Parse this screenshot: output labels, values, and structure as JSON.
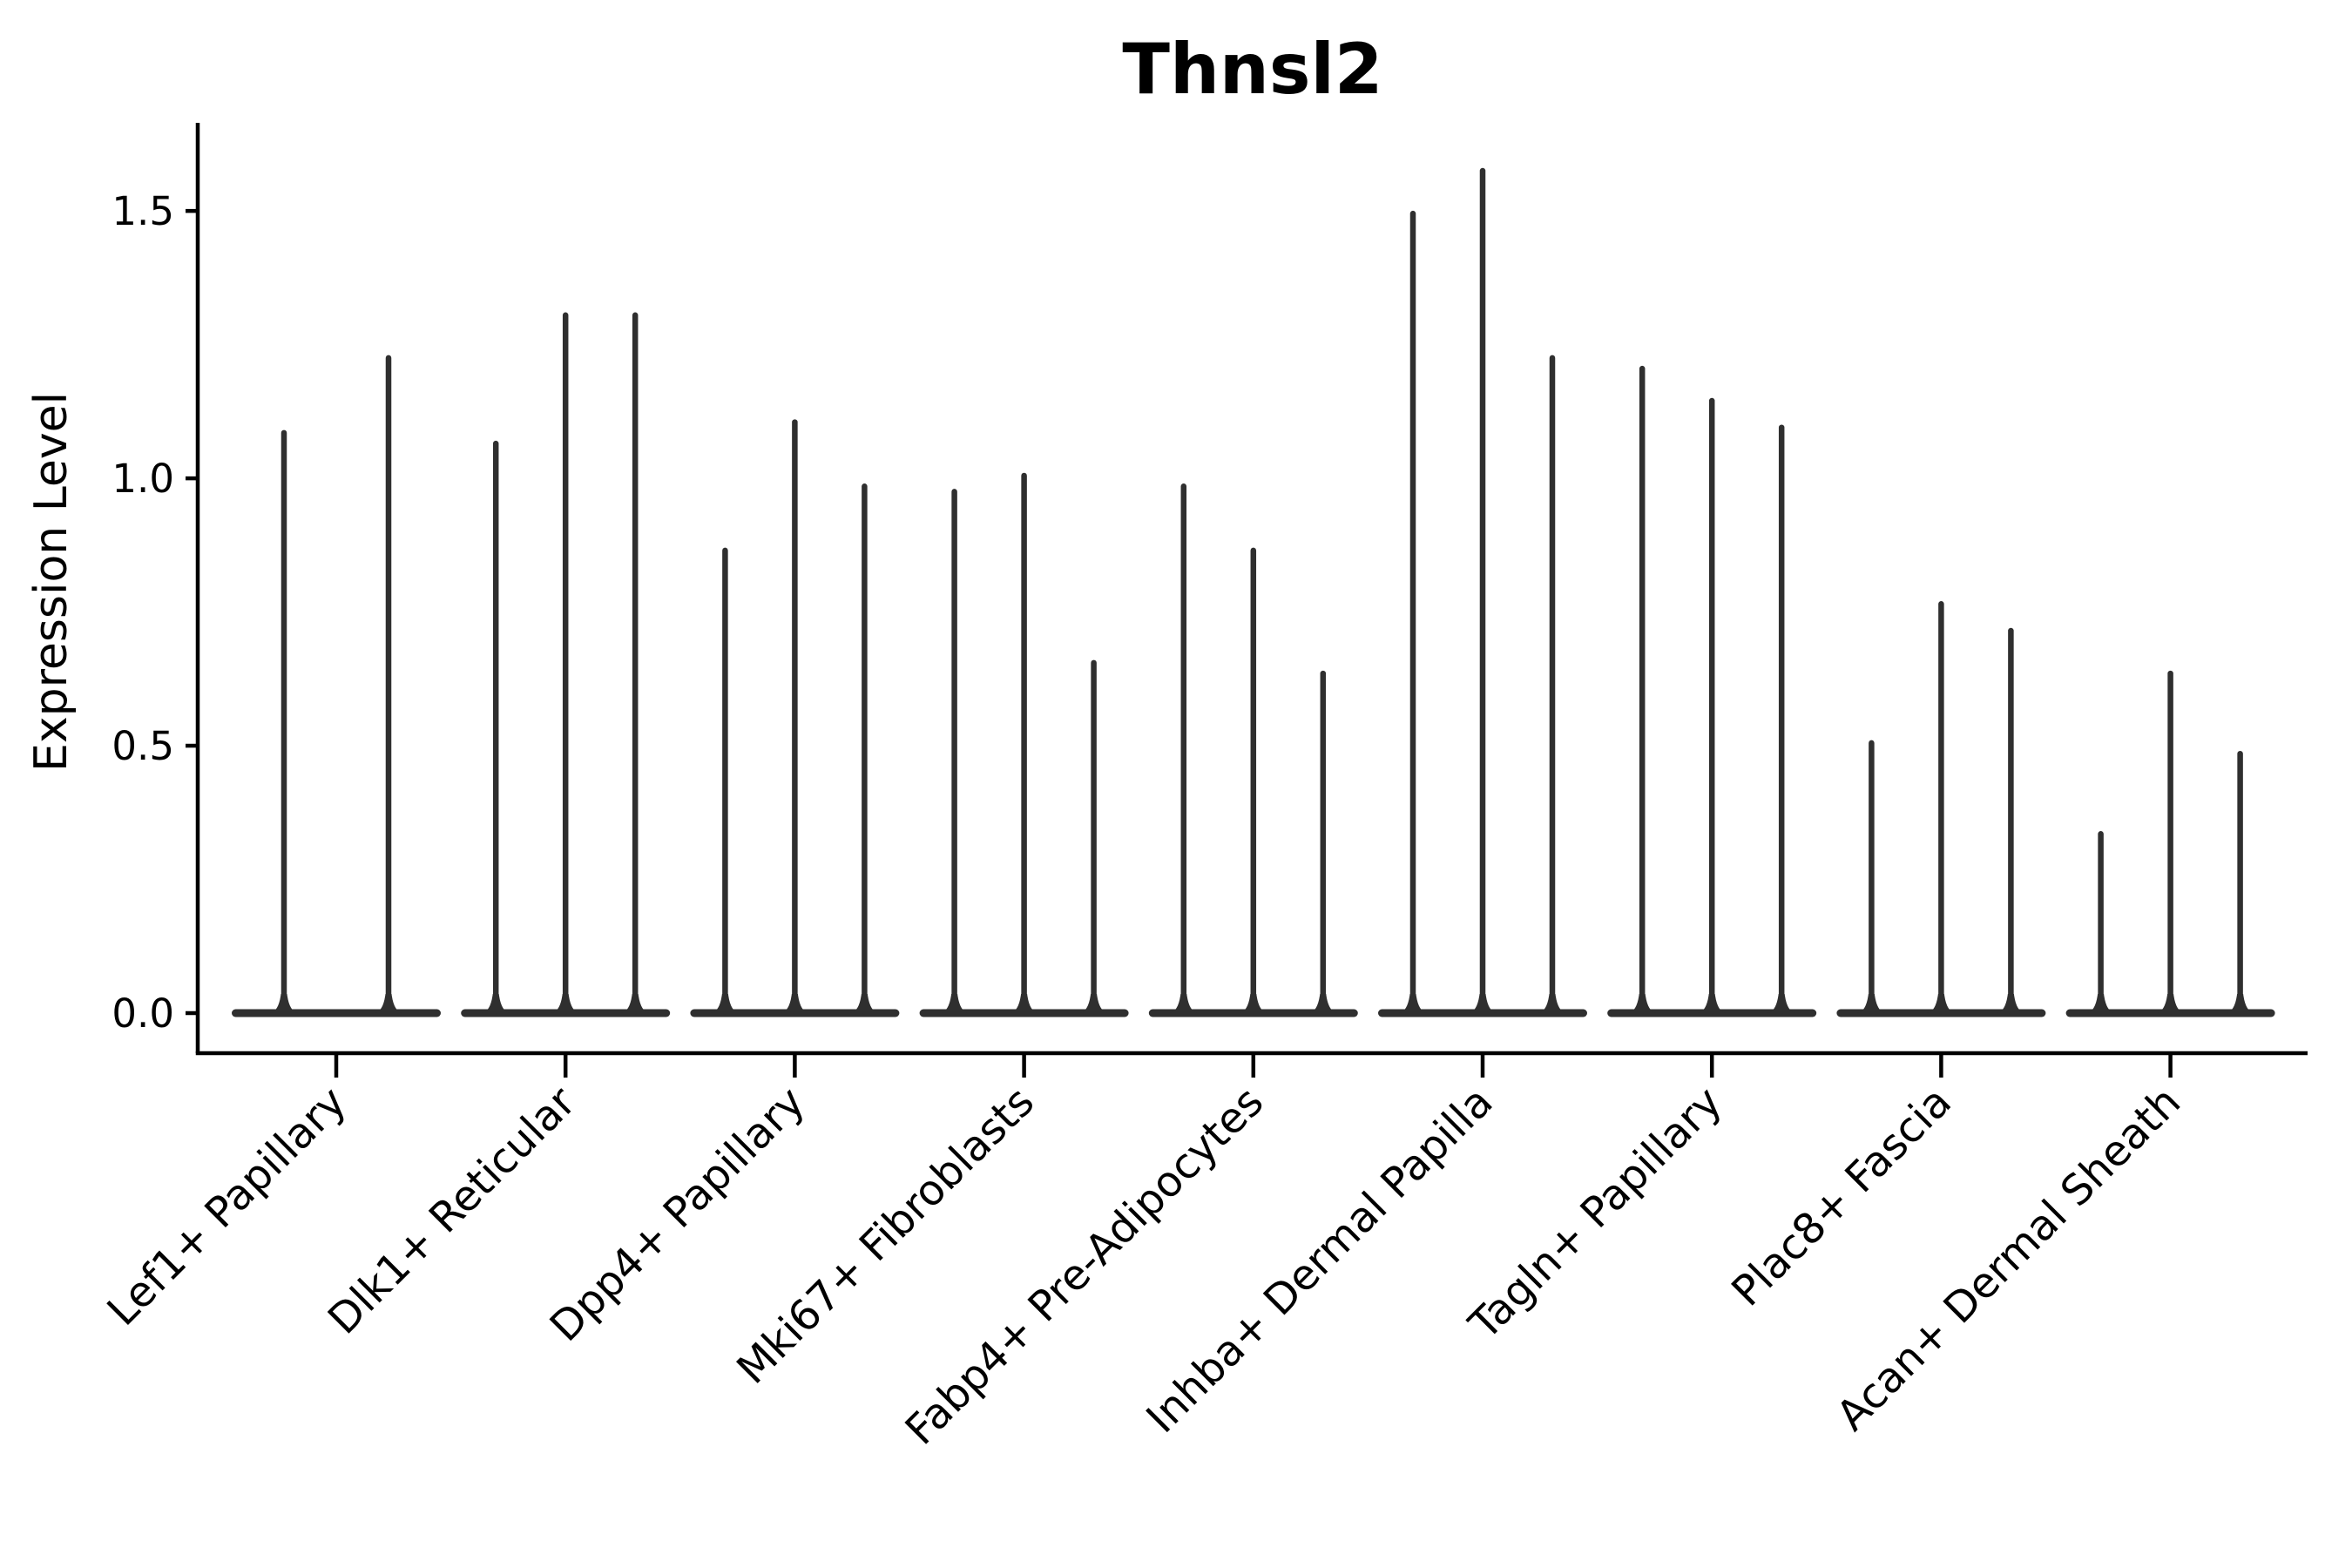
{
  "figure": {
    "background": "#ffffff"
  },
  "chart_data": {
    "type": "violin",
    "title": "Thnsl2",
    "ylabel": "Expression Level",
    "xlabel": "",
    "ylim": [
      0,
      1.67
    ],
    "yticks": [
      {
        "value": 0.0,
        "label": "0.0"
      },
      {
        "value": 0.5,
        "label": "0.5"
      },
      {
        "value": 1.0,
        "label": "1.0"
      },
      {
        "value": 1.5,
        "label": "1.5"
      }
    ],
    "grid": false,
    "legend": "none",
    "x_label_rotation_deg": 45,
    "colors": {
      "violin": "#2f2f2f",
      "axis": "#000000",
      "text": "#000000",
      "background": "#ffffff"
    },
    "categories": [
      "Lef1+ Papillary",
      "Dlk1+ Reticular",
      "Dpp4+ Papillary",
      "Mki67+ Fibroblasts",
      "Fabp4+ Pre-Adipocytes",
      "Inhba+ Dermal Papilla",
      "Tagln+ Papillary",
      "Plac8+ Fascia",
      "Acan+ Dermal Sheath"
    ],
    "groups": [
      {
        "category": "Lef1+ Papillary",
        "violin_peak_expression": [
          1.09,
          1.23
        ]
      },
      {
        "category": "Dlk1+ Reticular",
        "violin_peak_expression": [
          1.07,
          1.31,
          1.31
        ]
      },
      {
        "category": "Dpp4+ Papillary",
        "violin_peak_expression": [
          0.87,
          1.11,
          0.99
        ]
      },
      {
        "category": "Mki67+ Fibroblasts",
        "violin_peak_expression": [
          0.98,
          1.01,
          0.66
        ]
      },
      {
        "category": "Fabp4+ Pre-Adipocytes",
        "violin_peak_expression": [
          0.99,
          0.87,
          0.64
        ]
      },
      {
        "category": "Inhba+ Dermal Papilla",
        "violin_peak_expression": [
          1.5,
          1.58,
          1.23
        ]
      },
      {
        "category": "Tagln+ Papillary",
        "violin_peak_expression": [
          1.21,
          1.15,
          1.1
        ]
      },
      {
        "category": "Plac8+ Fascia",
        "violin_peak_expression": [
          0.51,
          0.77,
          0.72
        ]
      },
      {
        "category": "Acan+ Dermal Sheath",
        "violin_peak_expression": [
          0.34,
          0.64,
          0.49
        ]
      }
    ]
  }
}
